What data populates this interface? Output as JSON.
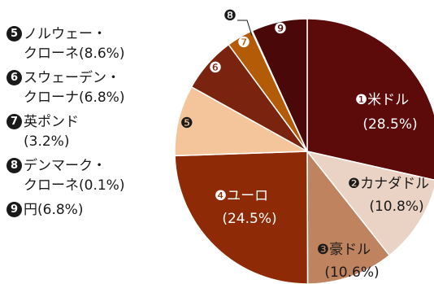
{
  "chart_data": {
    "type": "pie",
    "slices": [
      {
        "num": "❶",
        "label": "米ドル",
        "value": 28.5,
        "value_text": "(28.5%)",
        "color": "#5c0a0a"
      },
      {
        "num": "❷",
        "label": "カナダドル",
        "value": 10.8,
        "value_text": "(10.8%)",
        "color": "#ead2c4"
      },
      {
        "num": "❸",
        "label": "豪ドル",
        "value": 10.6,
        "value_text": "(10.6%)",
        "color": "#c0835f"
      },
      {
        "num": "❹",
        "label": "ユーロ",
        "value": 24.5,
        "value_text": "(24.5%)",
        "color": "#8f2a06"
      },
      {
        "num": "❺",
        "label": "ノルウェー・クローネ",
        "value": 8.6,
        "value_text": "",
        "color": "#f4c49a"
      },
      {
        "num": "❻",
        "label": "スウェーデン・クローナ",
        "value": 6.8,
        "value_text": "",
        "color": "#7a2410"
      },
      {
        "num": "❼",
        "label": "英ポンド",
        "value": 3.2,
        "value_text": "",
        "color": "#b45b08"
      },
      {
        "num": "❽",
        "label": "デンマーク・クローネ",
        "value": 0.1,
        "value_text": "",
        "color": "#f2d3b8"
      },
      {
        "num": "❾",
        "label": "円",
        "value": 6.8,
        "value_text": "",
        "color": "#4a0808"
      }
    ]
  },
  "legend": [
    {
      "num": "5",
      "line1": "ノルウェー・",
      "line2": "クローネ(8.6%)"
    },
    {
      "num": "6",
      "line1": "スウェーデン・",
      "line2": "クローナ(6.8%)"
    },
    {
      "num": "7",
      "line1": "英ポンド",
      "line2": "(3.2%)"
    },
    {
      "num": "8",
      "line1": "デンマーク・",
      "line2": "クローネ(0.1%)"
    },
    {
      "num": "9",
      "line1": "円(6.8%)",
      "line2": ""
    }
  ]
}
